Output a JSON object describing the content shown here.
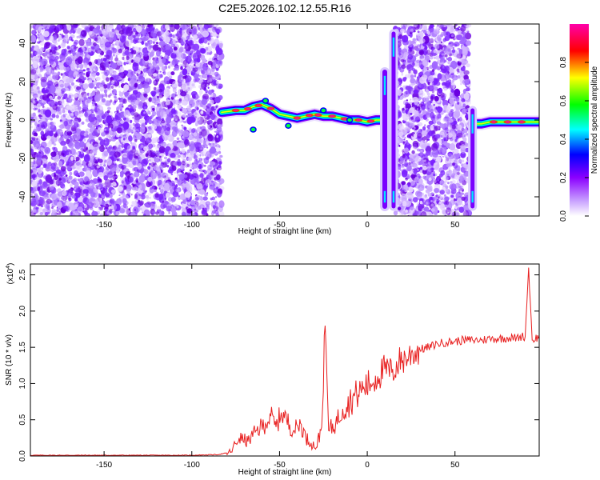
{
  "figure": {
    "title": "C2E5.2026.102.12.55.R16"
  },
  "chart_data": [
    {
      "type": "heatmap",
      "title": "C2E5.2026.102.12.55.R16",
      "xlabel": "Height of straight line (km)",
      "ylabel": "Frequency (Hz)",
      "xlim": [
        -192,
        98
      ],
      "ylim": [
        -50,
        50
      ],
      "x_ticks": [
        -150,
        -100,
        -50,
        0,
        50
      ],
      "y_ticks": [
        -40,
        -20,
        0,
        20,
        40
      ],
      "colorbar": {
        "label": "Normalized spectral amplitude",
        "range": [
          0,
          1
        ],
        "ticks": [
          "0.0",
          "0.2",
          "0.4",
          "0.6",
          "0.8"
        ],
        "colormap": [
          "#ffffff",
          "#8b00ff",
          "#0000ff",
          "#00ffff",
          "#00ff00",
          "#ffff00",
          "#ff0000",
          "#ff00aa"
        ]
      },
      "noise_regions_km": [
        [
          -192,
          -83
        ],
        [
          16,
          58
        ]
      ],
      "ridge": {
        "description_points": [
          [
            -83,
            4
          ],
          [
            -75,
            5
          ],
          [
            -70,
            5
          ],
          [
            -65,
            7
          ],
          [
            -60,
            8
          ],
          [
            -55,
            6
          ],
          [
            -50,
            3
          ],
          [
            -45,
            2
          ],
          [
            -40,
            1
          ],
          [
            -35,
            2
          ],
          [
            -30,
            3
          ],
          [
            -25,
            2
          ],
          [
            -20,
            2
          ],
          [
            -15,
            1
          ],
          [
            -10,
            0
          ],
          [
            -5,
            0
          ],
          [
            0,
            -1
          ],
          [
            5,
            0
          ],
          [
            8,
            0
          ],
          [
            60,
            -2
          ],
          [
            65,
            -2
          ],
          [
            70,
            -1
          ],
          [
            75,
            -1
          ],
          [
            80,
            -1
          ],
          [
            85,
            -1
          ],
          [
            90,
            -1
          ],
          [
            98,
            -1
          ]
        ]
      },
      "spikes_km": [
        10,
        15,
        60
      ]
    },
    {
      "type": "line",
      "xlabel": "Height of straight line (km)",
      "ylabel": "SNR (10 * v/v)",
      "y_multiplier": "(x10",
      "y_multiplier_exp": "4",
      "y_multiplier_close": ")",
      "xlim": [
        -192,
        98
      ],
      "ylim": [
        0,
        2.65
      ],
      "x_ticks": [
        -150,
        -100,
        -50,
        0,
        50
      ],
      "y_ticks": [
        "0.0",
        "0.5",
        "1.0",
        "1.5",
        "2.0",
        "2.5"
      ],
      "color": "#e82020",
      "x": [
        -192,
        -150,
        -100,
        -85,
        -78,
        -73,
        -68,
        -63,
        -58,
        -55,
        -52,
        -49,
        -46,
        -42,
        -38,
        -35,
        -32,
        -29,
        -26,
        -24,
        -22,
        -18,
        -14,
        -10,
        -6,
        -2,
        2,
        6,
        10,
        14,
        18,
        22,
        26,
        30,
        35,
        40,
        45,
        50,
        55,
        60,
        65,
        70,
        75,
        80,
        85,
        88,
        90,
        92,
        94,
        98
      ],
      "values": [
        0.01,
        0.01,
        0.01,
        0.02,
        0.05,
        0.25,
        0.2,
        0.35,
        0.45,
        0.55,
        0.4,
        0.6,
        0.5,
        0.35,
        0.45,
        0.25,
        0.18,
        0.12,
        0.4,
        1.8,
        0.35,
        0.45,
        0.65,
        0.75,
        0.85,
        0.95,
        1.0,
        1.1,
        1.2,
        1.15,
        1.3,
        1.35,
        1.42,
        1.47,
        1.5,
        1.55,
        1.57,
        1.58,
        1.6,
        1.6,
        1.6,
        1.62,
        1.62,
        1.63,
        1.63,
        1.65,
        1.65,
        2.6,
        1.6,
        1.65
      ]
    }
  ]
}
